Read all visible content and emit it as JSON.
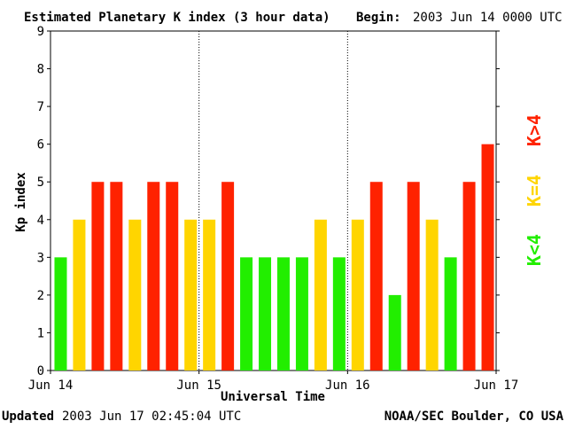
{
  "chart_data": {
    "type": "bar",
    "title": "Estimated Planetary K index (3 hour data)",
    "begin_label": "Begin:",
    "begin_value": "2003 Jun 14 0000 UTC",
    "xlabel": "Universal Time",
    "ylabel": "Kp index",
    "ylim": [
      0,
      9
    ],
    "y_ticks": [
      "0",
      "1",
      "2",
      "3",
      "4",
      "5",
      "6",
      "7",
      "8",
      "9"
    ],
    "x_ticks": [
      "Jun 14",
      "Jun 15",
      "Jun 16",
      "Jun 17"
    ],
    "values": [
      3,
      4,
      5,
      5,
      4,
      5,
      5,
      4,
      4,
      5,
      3,
      3,
      3,
      3,
      4,
      3,
      4,
      5,
      2,
      5,
      4,
      3,
      5,
      6
    ],
    "legend": [
      {
        "label": "K<4",
        "color": "#22ee00"
      },
      {
        "label": "K=4",
        "color": "#ffd500"
      },
      {
        "label": "K>4",
        "color": "#ff2200"
      }
    ],
    "footer_left_label": "Updated",
    "footer_left_value": "2003 Jun 17 02:45:04 UTC",
    "footer_right": "NOAA/SEC Boulder, CO USA"
  },
  "colors": {
    "low": "#22ee00",
    "mid": "#ffd500",
    "high": "#ff2200",
    "frame": "#000000"
  }
}
